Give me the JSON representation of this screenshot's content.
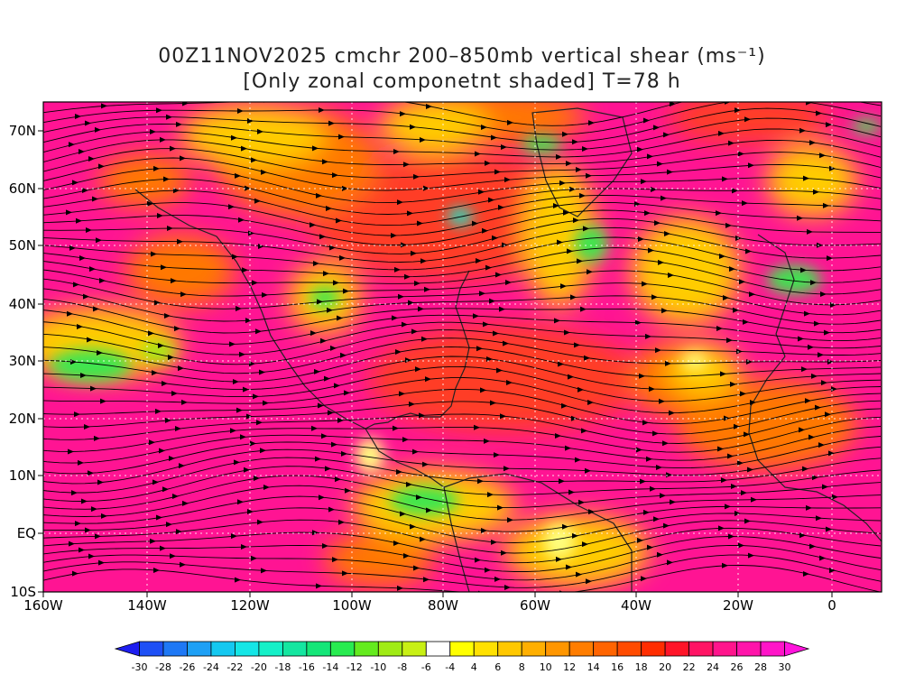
{
  "title_line1": "00Z11NOV2025 cmchr 200–850mb vertical shear (ms⁻¹)",
  "title_line2": "[Only zonal componetnt shaded] T=78 h",
  "lat_labels": [
    "70N",
    "60N",
    "50N",
    "40N",
    "30N",
    "20N",
    "10N",
    "EQ",
    "10S"
  ],
  "lon_labels": [
    "160W",
    "140W",
    "120W",
    "100W",
    "80W",
    "60W",
    "40W",
    "20W",
    "0"
  ],
  "colorbar": {
    "labels": [
      "-30",
      "-28",
      "-26",
      "-24",
      "-22",
      "-20",
      "-18",
      "-16",
      "-14",
      "-12",
      "-10",
      "-8",
      "-6",
      "-4",
      "4",
      "6",
      "8",
      "10",
      "12",
      "14",
      "16",
      "18",
      "20",
      "22",
      "24",
      "26",
      "28",
      "30"
    ],
    "colors": [
      "#1e1ef0",
      "#1e50f5",
      "#1e78f5",
      "#1ea0f5",
      "#14c8f0",
      "#14e6e6",
      "#14f0c8",
      "#14e6a0",
      "#14e678",
      "#28eb50",
      "#64eb1e",
      "#a0eb14",
      "#c8f014",
      "#ffffff",
      "#ffff00",
      "#ffe100",
      "#ffc800",
      "#ffaf00",
      "#ff9600",
      "#ff7d00",
      "#ff6400",
      "#ff4b00",
      "#ff2d00",
      "#ff1428",
      "#ff1464",
      "#ff148c",
      "#ff14aa",
      "#ff14c8",
      "#ff14dc"
    ]
  },
  "shading_colors": {
    "background": "#ff1493",
    "red": "#ff3c28",
    "orange": "#ff7800",
    "yellow": "#ffcc00",
    "pale_yellow": "#ffff80",
    "green": "#3ce650",
    "lime": "#a0eb14",
    "cyan": "#14e6c8"
  }
}
